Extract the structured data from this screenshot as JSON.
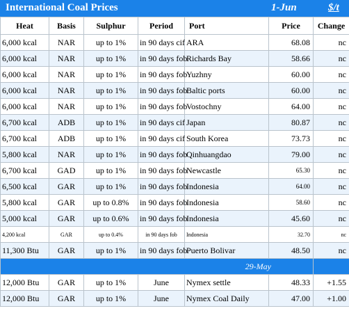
{
  "header": {
    "title": "International Coal Prices",
    "date": "1-Jun",
    "unit": "$/t"
  },
  "columns": [
    "Heat",
    "Basis",
    "Sulphur",
    "Period",
    "Port",
    "Price",
    "Change"
  ],
  "rows": [
    {
      "heat": "6,000 kcal",
      "basis": "NAR",
      "sulphur": "up to 1%",
      "period": "in 90 days cif",
      "port": "ARA",
      "price": "68.08",
      "change": "nc"
    },
    {
      "heat": "6,000 kcal",
      "basis": "NAR",
      "sulphur": "up to 1%",
      "period": "in 90 days fob",
      "port": "Richards Bay",
      "price": "58.66",
      "change": "nc"
    },
    {
      "heat": "6,000 kcal",
      "basis": "NAR",
      "sulphur": "up to 1%",
      "period": "in 90 days fob",
      "port": "Yuzhny",
      "price": "60.00",
      "change": "nc"
    },
    {
      "heat": "6,000 kcal",
      "basis": "NAR",
      "sulphur": "up to 1%",
      "period": "in 90 days fob",
      "port": "Baltic ports",
      "price": "60.00",
      "change": "nc"
    },
    {
      "heat": "6,000 kcal",
      "basis": "NAR",
      "sulphur": "up to 1%",
      "period": "in 90 days fob",
      "port": "Vostochny",
      "price": "64.00",
      "change": "nc"
    },
    {
      "heat": "6,700 kcal",
      "basis": "ADB",
      "sulphur": "up to 1%",
      "period": "in 90 days cif",
      "port": "Japan",
      "price": "80.87",
      "change": "nc"
    },
    {
      "heat": "6,700 kcal",
      "basis": "ADB",
      "sulphur": "up to 1%",
      "period": "in 90 days cif",
      "port": "South Korea",
      "price": "73.73",
      "change": "nc"
    },
    {
      "heat": "5,800 kcal",
      "basis": "NAR",
      "sulphur": "up to 1%",
      "period": "in 90 days fob",
      "port": "Qinhuangdao",
      "price": "79.00",
      "change": "nc"
    },
    {
      "heat": "6,700 kcal",
      "basis": "GAD",
      "sulphur": "up to 1%",
      "period": "in 90 days fob",
      "port": "Newcastle",
      "price": "65.30",
      "change": "nc"
    },
    {
      "heat": "6,500 kcal",
      "basis": "GAR",
      "sulphur": "up to 1%",
      "period": "in 90 days fob",
      "port": "Indonesia",
      "price": "64.00",
      "change": "nc"
    },
    {
      "heat": "5,800 kcal",
      "basis": "GAR",
      "sulphur": "up to 0.8%",
      "period": "in 90 days fob",
      "port": "Indonesia",
      "price": "58.60",
      "change": "nc"
    },
    {
      "heat": "5,000 kcal",
      "basis": "GAR",
      "sulphur": "up to 0.6%",
      "period": "in 90 days fob",
      "port": "Indonesia",
      "price": "45.60",
      "change": "nc"
    },
    {
      "heat": "4,200 kcal",
      "basis": "GAR",
      "sulphur": "up to 0.4%",
      "period": "in 90 days fob",
      "port": "Indonesia",
      "price": "32.70",
      "change": "nc"
    },
    {
      "heat": "11,300 Btu",
      "basis": "GAR",
      "sulphur": "up to 1%",
      "period": "in 90 days fob",
      "port": "Puerto Bolivar",
      "price": "48.50",
      "change": "nc"
    }
  ],
  "divider_date": "29-May",
  "rows2": [
    {
      "heat": "12,000 Btu",
      "basis": "GAR",
      "sulphur": "up to 1%",
      "period": "June",
      "port": "Nymex settle",
      "price": "48.33",
      "change": "+1.55"
    },
    {
      "heat": "12,000 Btu",
      "basis": "GAR",
      "sulphur": "up to 1%",
      "period": "June",
      "port": "Nymex Coal Daily",
      "price": "47.00",
      "change": "+1.00"
    }
  ]
}
